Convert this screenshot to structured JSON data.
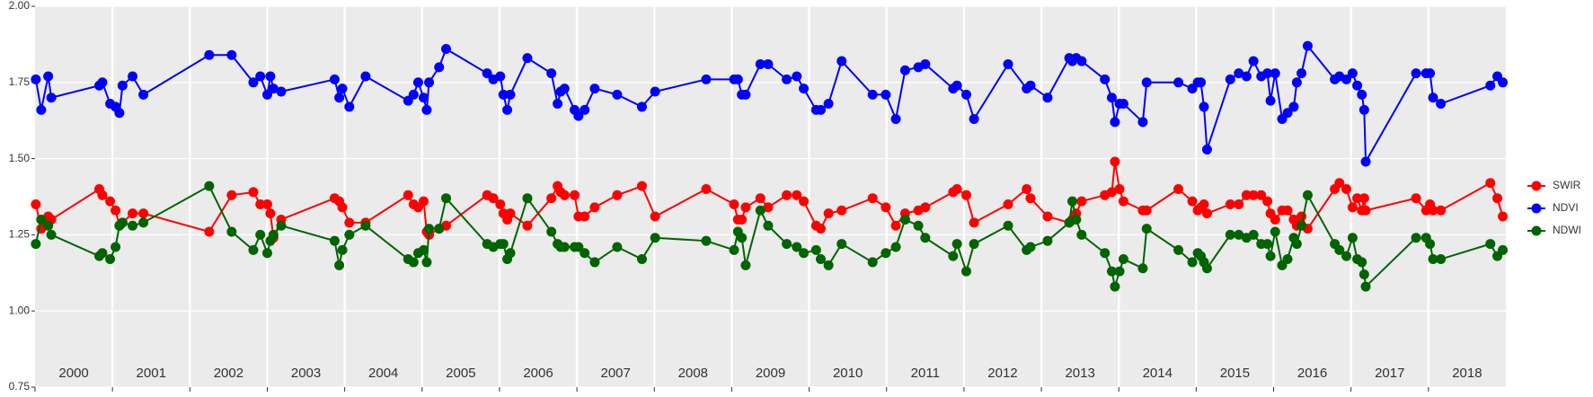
{
  "chart_data": {
    "type": "line",
    "x": [
      2000.01,
      2000.08,
      2000.17,
      2000.21,
      2000.83,
      2000.87,
      2000.97,
      2001.04,
      2001.09,
      2001.13,
      2001.26,
      2001.4,
      2002.25,
      2002.54,
      2002.82,
      2002.91,
      2003.0,
      2003.04,
      2003.08,
      2003.18,
      2003.87,
      2003.93,
      2003.97,
      2004.06,
      2004.27,
      2004.82,
      2004.89,
      2004.95,
      2005.02,
      2005.06,
      2005.09,
      2005.22,
      2005.31,
      2005.84,
      2005.92,
      2006.01,
      2006.05,
      2006.1,
      2006.14,
      2006.36,
      2006.67,
      2006.75,
      2006.79,
      2006.84,
      2006.97,
      2007.02,
      2007.1,
      2007.23,
      2007.52,
      2007.84,
      2008.01,
      2008.67,
      2009.03,
      2009.08,
      2009.13,
      2009.18,
      2009.37,
      2009.47,
      2009.71,
      2009.84,
      2009.93,
      2010.09,
      2010.15,
      2010.25,
      2010.42,
      2010.82,
      2010.99,
      2011.12,
      2011.24,
      2011.41,
      2011.5,
      2011.86,
      2011.91,
      2012.03,
      2012.13,
      2012.57,
      2012.81,
      2012.86,
      2013.08,
      2013.36,
      2013.4,
      2013.45,
      2013.52,
      2013.82,
      2013.91,
      2013.95,
      2014.01,
      2014.06,
      2014.31,
      2014.36,
      2014.77,
      2014.95,
      2015.02,
      2015.06,
      2015.1,
      2015.14,
      2015.44,
      2015.55,
      2015.65,
      2015.74,
      2015.84,
      2015.92,
      2015.96,
      2016.02,
      2016.11,
      2016.18,
      2016.26,
      2016.3,
      2016.36,
      2016.44,
      2016.79,
      2016.85,
      2016.94,
      2017.02,
      2017.08,
      2017.14,
      2017.17,
      2017.19,
      2017.84,
      2017.97,
      2018.02,
      2018.06,
      2018.16,
      2018.8,
      2018.89,
      2018.96
    ],
    "series": [
      {
        "name": "SWIR",
        "color": "#ff0000",
        "values": [
          1.35,
          1.27,
          1.31,
          1.3,
          1.4,
          1.38,
          1.36,
          1.33,
          1.28,
          1.29,
          1.32,
          1.32,
          1.26,
          1.38,
          1.39,
          1.35,
          1.35,
          1.32,
          1.24,
          1.3,
          1.37,
          1.36,
          1.34,
          1.29,
          1.29,
          1.38,
          1.35,
          1.34,
          1.36,
          1.26,
          1.25,
          1.27,
          1.28,
          1.38,
          1.37,
          1.35,
          1.32,
          1.3,
          1.32,
          1.28,
          1.37,
          1.41,
          1.39,
          1.38,
          1.38,
          1.31,
          1.31,
          1.34,
          1.38,
          1.41,
          1.31,
          1.4,
          1.35,
          1.3,
          1.3,
          1.34,
          1.37,
          1.34,
          1.38,
          1.38,
          1.36,
          1.28,
          1.27,
          1.32,
          1.33,
          1.37,
          1.34,
          1.28,
          1.32,
          1.33,
          1.34,
          1.39,
          1.4,
          1.38,
          1.29,
          1.35,
          1.4,
          1.37,
          1.31,
          1.29,
          1.3,
          1.32,
          1.36,
          1.38,
          1.39,
          1.49,
          1.4,
          1.36,
          1.33,
          1.33,
          1.4,
          1.36,
          1.33,
          1.34,
          1.35,
          1.32,
          1.35,
          1.35,
          1.38,
          1.38,
          1.38,
          1.36,
          1.32,
          1.3,
          1.33,
          1.33,
          1.3,
          1.28,
          1.31,
          1.27,
          1.4,
          1.42,
          1.4,
          1.34,
          1.37,
          1.33,
          1.37,
          1.33,
          1.37,
          1.33,
          1.35,
          1.33,
          1.33,
          1.42,
          1.37,
          1.31
        ]
      },
      {
        "name": "NDVI",
        "color": "#0000ff",
        "values": [
          1.76,
          1.66,
          1.77,
          1.7,
          1.74,
          1.75,
          1.68,
          1.67,
          1.65,
          1.74,
          1.77,
          1.71,
          1.84,
          1.84,
          1.75,
          1.77,
          1.71,
          1.77,
          1.73,
          1.72,
          1.76,
          1.7,
          1.73,
          1.67,
          1.77,
          1.69,
          1.71,
          1.75,
          1.7,
          1.66,
          1.75,
          1.8,
          1.86,
          1.78,
          1.76,
          1.77,
          1.71,
          1.66,
          1.71,
          1.83,
          1.78,
          1.68,
          1.72,
          1.73,
          1.66,
          1.64,
          1.66,
          1.73,
          1.71,
          1.67,
          1.72,
          1.76,
          1.76,
          1.76,
          1.71,
          1.71,
          1.81,
          1.81,
          1.76,
          1.77,
          1.73,
          1.66,
          1.66,
          1.68,
          1.82,
          1.71,
          1.71,
          1.63,
          1.79,
          1.8,
          1.81,
          1.73,
          1.74,
          1.71,
          1.63,
          1.81,
          1.73,
          1.74,
          1.7,
          1.83,
          1.82,
          1.83,
          1.82,
          1.76,
          1.7,
          1.62,
          1.68,
          1.68,
          1.62,
          1.75,
          1.75,
          1.73,
          1.75,
          1.75,
          1.67,
          1.53,
          1.76,
          1.78,
          1.77,
          1.82,
          1.77,
          1.78,
          1.69,
          1.78,
          1.63,
          1.65,
          1.67,
          1.75,
          1.78,
          1.87,
          1.76,
          1.77,
          1.76,
          1.78,
          1.74,
          1.71,
          1.66,
          1.49,
          1.78,
          1.78,
          1.78,
          1.7,
          1.68,
          1.74,
          1.77,
          1.75
        ]
      },
      {
        "name": "NDWI",
        "color": "#006400",
        "values": [
          1.22,
          1.3,
          1.28,
          1.25,
          1.18,
          1.19,
          1.17,
          1.21,
          1.28,
          1.29,
          1.28,
          1.29,
          1.41,
          1.26,
          1.2,
          1.25,
          1.19,
          1.23,
          1.25,
          1.28,
          1.23,
          1.15,
          1.2,
          1.25,
          1.28,
          1.17,
          1.16,
          1.19,
          1.2,
          1.16,
          1.27,
          1.27,
          1.37,
          1.22,
          1.21,
          1.22,
          1.22,
          1.17,
          1.19,
          1.37,
          1.26,
          1.22,
          1.21,
          1.21,
          1.21,
          1.21,
          1.19,
          1.16,
          1.21,
          1.17,
          1.24,
          1.23,
          1.2,
          1.26,
          1.24,
          1.15,
          1.33,
          1.28,
          1.22,
          1.21,
          1.19,
          1.2,
          1.17,
          1.15,
          1.22,
          1.16,
          1.19,
          1.21,
          1.3,
          1.28,
          1.24,
          1.18,
          1.22,
          1.13,
          1.22,
          1.28,
          1.2,
          1.21,
          1.23,
          1.29,
          1.36,
          1.3,
          1.25,
          1.19,
          1.13,
          1.08,
          1.13,
          1.17,
          1.14,
          1.27,
          1.2,
          1.16,
          1.19,
          1.18,
          1.16,
          1.14,
          1.25,
          1.25,
          1.24,
          1.25,
          1.22,
          1.22,
          1.18,
          1.26,
          1.15,
          1.17,
          1.24,
          1.22,
          1.28,
          1.38,
          1.22,
          1.2,
          1.18,
          1.24,
          1.17,
          1.16,
          1.12,
          1.08,
          1.24,
          1.24,
          1.22,
          1.17,
          1.17,
          1.22,
          1.18,
          1.2
        ]
      }
    ],
    "xlim": [
      2000,
      2019
    ],
    "xticks": [
      2000,
      2001,
      2002,
      2003,
      2004,
      2005,
      2006,
      2007,
      2008,
      2009,
      2010,
      2011,
      2012,
      2013,
      2014,
      2015,
      2016,
      2017,
      2018
    ],
    "ylim": [
      0.75,
      2.0
    ],
    "yticks": [
      {
        "value": 0.75,
        "label": "0.75"
      },
      {
        "value": 1.0,
        "label": "1.00"
      },
      {
        "value": 1.25,
        "label": "1.25"
      },
      {
        "value": 1.5,
        "label": "1.50"
      },
      {
        "value": 1.75,
        "label": "1.75"
      },
      {
        "value": 2.0,
        "label": "2.00"
      }
    ],
    "grid": true,
    "legend": "right"
  }
}
